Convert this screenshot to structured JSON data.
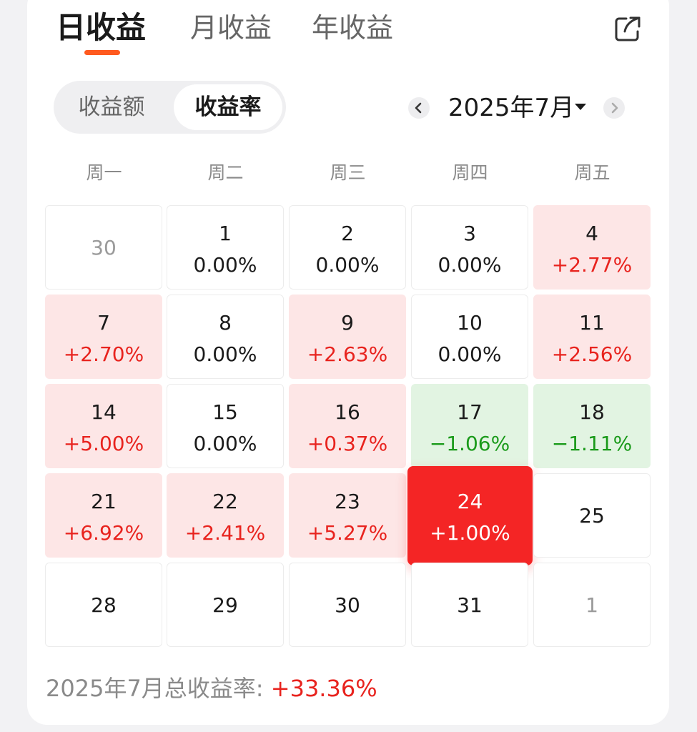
{
  "tabs": [
    {
      "label": "日收益",
      "active": true
    },
    {
      "label": "月收益",
      "active": false
    },
    {
      "label": "年收益",
      "active": false
    }
  ],
  "share_icon": "share-icon",
  "segmented": {
    "options": [
      "收益额",
      "收益率"
    ],
    "selected": "收益率"
  },
  "month_nav": {
    "label": "2025年7月",
    "prev_icon": "chevron-left-icon",
    "next_icon": "chevron-right-icon",
    "dropdown_icon": "caret-down-icon"
  },
  "weekdays": [
    "周一",
    "周二",
    "周三",
    "周四",
    "周五"
  ],
  "calendar": {
    "rows": [
      [
        {
          "day": "30",
          "value": "",
          "state": "other"
        },
        {
          "day": "1",
          "value": "0.00%",
          "state": "zero"
        },
        {
          "day": "2",
          "value": "0.00%",
          "state": "zero"
        },
        {
          "day": "3",
          "value": "0.00%",
          "state": "zero"
        },
        {
          "day": "4",
          "value": "+2.77%",
          "state": "pos"
        }
      ],
      [
        {
          "day": "7",
          "value": "+2.70%",
          "state": "pos"
        },
        {
          "day": "8",
          "value": "0.00%",
          "state": "zero"
        },
        {
          "day": "9",
          "value": "+2.63%",
          "state": "pos"
        },
        {
          "day": "10",
          "value": "0.00%",
          "state": "zero"
        },
        {
          "day": "11",
          "value": "+2.56%",
          "state": "pos"
        }
      ],
      [
        {
          "day": "14",
          "value": "+5.00%",
          "state": "pos"
        },
        {
          "day": "15",
          "value": "0.00%",
          "state": "zero"
        },
        {
          "day": "16",
          "value": "+0.37%",
          "state": "pos"
        },
        {
          "day": "17",
          "value": "−1.06%",
          "state": "neg"
        },
        {
          "day": "18",
          "value": "−1.11%",
          "state": "neg"
        }
      ],
      [
        {
          "day": "21",
          "value": "+6.92%",
          "state": "pos"
        },
        {
          "day": "22",
          "value": "+2.41%",
          "state": "pos"
        },
        {
          "day": "23",
          "value": "+5.27%",
          "state": "pos"
        },
        {
          "day": "24",
          "value": "+1.00%",
          "state": "today"
        },
        {
          "day": "25",
          "value": "",
          "state": "future"
        }
      ],
      [
        {
          "day": "28",
          "value": "",
          "state": "future"
        },
        {
          "day": "29",
          "value": "",
          "state": "future"
        },
        {
          "day": "30",
          "value": "",
          "state": "future"
        },
        {
          "day": "31",
          "value": "",
          "state": "future"
        },
        {
          "day": "1",
          "value": "",
          "state": "other"
        }
      ]
    ]
  },
  "summary": {
    "label": "2025年7月总收益率: ",
    "value": "+33.36%"
  },
  "colors": {
    "accent": "#ff5a1f",
    "positive": "#e8231e",
    "negative": "#1a9a1a",
    "positive_bg": "#fde6e6",
    "negative_bg": "#e2f4e2",
    "today_bg": "#f42525"
  }
}
